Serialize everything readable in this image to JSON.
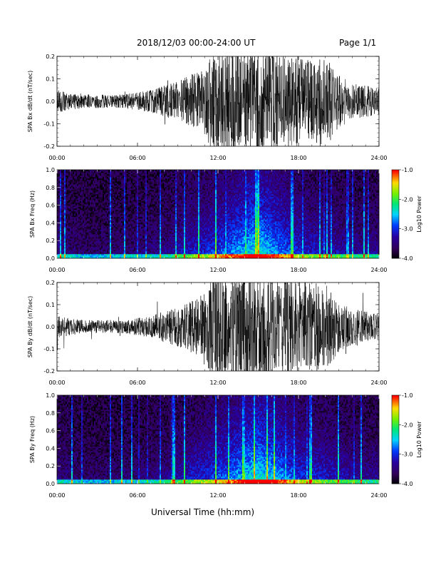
{
  "header": {
    "title": "2018/12/03  00:00-24:00 UT",
    "page": "Page 1/1"
  },
  "xaxis_title": "Universal Time (hh:mm)",
  "chart_data": [
    {
      "type": "line",
      "ylabel": "SPA Bx dB/dt (nT/sec)",
      "xlim": [
        "00:00",
        "24:00"
      ],
      "xticks": [
        "00:00",
        "06:00",
        "12:00",
        "18:00",
        "24:00"
      ],
      "ylim": [
        -0.2,
        0.2
      ],
      "yticks": [
        "-0.2",
        "-0.1",
        "0.0",
        "0.1",
        "0.2"
      ],
      "envelope": {
        "hours": [
          0,
          1,
          2,
          3,
          4,
          5,
          6,
          7,
          8,
          9,
          10,
          11,
          11.5,
          12,
          13,
          14,
          15,
          16,
          17,
          18,
          19,
          20,
          21,
          22,
          23,
          24
        ],
        "amplitude": [
          0.05,
          0.04,
          0.03,
          0.03,
          0.03,
          0.03,
          0.04,
          0.05,
          0.07,
          0.09,
          0.12,
          0.15,
          0.22,
          0.24,
          0.24,
          0.24,
          0.24,
          0.24,
          0.2,
          0.2,
          0.18,
          0.2,
          0.12,
          0.08,
          0.07,
          0.06
        ]
      }
    },
    {
      "type": "heatmap",
      "ylabel": "SPA Bx Freq (Hz)",
      "xlim": [
        "00:00",
        "24:00"
      ],
      "xticks": [
        "00:00",
        "06:00",
        "12:00",
        "18:00",
        "24:00"
      ],
      "ylim": [
        0.0,
        1.0
      ],
      "yticks": [
        "0.0",
        "0.2",
        "0.4",
        "0.6",
        "0.8",
        "1.0"
      ],
      "colorbar": {
        "label": "Log10 Power",
        "range": [
          -4.0,
          -1.0
        ],
        "ticks": [
          "-1.0",
          "-2.0",
          "-3.0",
          "-4.0"
        ]
      },
      "activity": {
        "hours": [
          0,
          2,
          4,
          6,
          8,
          9,
          10,
          11,
          12,
          13,
          14,
          15,
          16,
          17,
          18,
          19,
          20,
          21,
          22,
          23,
          24
        ],
        "level": [
          0.25,
          0.15,
          0.15,
          0.2,
          0.25,
          0.35,
          0.45,
          0.5,
          0.6,
          0.7,
          0.85,
          0.95,
          0.8,
          0.65,
          0.5,
          0.45,
          0.4,
          0.35,
          0.3,
          0.3,
          0.3
        ]
      }
    },
    {
      "type": "line",
      "ylabel": "SPA By dB/dt (nT/sec)",
      "xlim": [
        "00:00",
        "24:00"
      ],
      "xticks": [
        "00:00",
        "06:00",
        "12:00",
        "18:00",
        "24:00"
      ],
      "ylim": [
        -0.2,
        0.2
      ],
      "yticks": [
        "-0.2",
        "-0.1",
        "0.0",
        "0.1",
        "0.2"
      ],
      "envelope": {
        "hours": [
          0,
          1,
          2,
          3,
          4,
          5,
          6,
          7,
          8,
          9,
          10,
          11,
          11.5,
          12,
          13,
          14,
          15,
          16,
          17,
          18,
          19,
          20,
          21,
          22,
          23,
          24
        ],
        "amplitude": [
          0.05,
          0.04,
          0.03,
          0.03,
          0.03,
          0.03,
          0.04,
          0.05,
          0.07,
          0.09,
          0.12,
          0.15,
          0.24,
          0.25,
          0.25,
          0.25,
          0.25,
          0.25,
          0.23,
          0.22,
          0.2,
          0.2,
          0.12,
          0.08,
          0.07,
          0.06
        ]
      }
    },
    {
      "type": "heatmap",
      "ylabel": "SPA By Freq (Hz)",
      "xlim": [
        "00:00",
        "24:00"
      ],
      "xticks": [
        "00:00",
        "06:00",
        "12:00",
        "18:00",
        "24:00"
      ],
      "ylim": [
        0.0,
        1.0
      ],
      "yticks": [
        "0.0",
        "0.2",
        "0.4",
        "0.6",
        "0.8",
        "1.0"
      ],
      "colorbar": {
        "label": "Log10 Power",
        "range": [
          -4.0,
          -1.0
        ],
        "ticks": [
          "-1.0",
          "-2.0",
          "-3.0",
          "-4.0"
        ]
      },
      "activity": {
        "hours": [
          0,
          2,
          4,
          6,
          8,
          9,
          10,
          11,
          12,
          13,
          14,
          15,
          16,
          17,
          18,
          19,
          20,
          21,
          22,
          23,
          24
        ],
        "level": [
          0.25,
          0.15,
          0.15,
          0.2,
          0.25,
          0.35,
          0.45,
          0.5,
          0.6,
          0.7,
          0.85,
          0.95,
          0.85,
          0.7,
          0.55,
          0.5,
          0.45,
          0.4,
          0.35,
          0.3,
          0.3
        ]
      }
    }
  ]
}
